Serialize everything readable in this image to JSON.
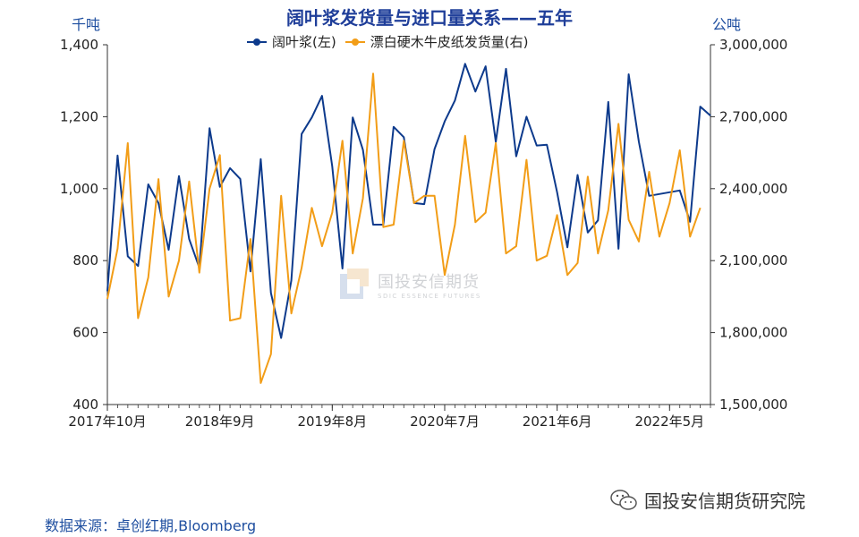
{
  "chart_data": {
    "type": "line",
    "title": "阔叶浆发货量与进口量关系——五年",
    "left_unit": "千吨",
    "right_unit": "公吨",
    "left_axis": {
      "min": 400,
      "max": 1400,
      "ticks": [
        400,
        600,
        800,
        1000,
        1200,
        1400
      ],
      "tick_labels": [
        "400",
        "600",
        "800",
        "1,000",
        "1,200",
        "1,400"
      ]
    },
    "right_axis": {
      "min": 1500000,
      "max": 3000000,
      "ticks": [
        1500000,
        1800000,
        2100000,
        2400000,
        2700000,
        3000000
      ],
      "tick_labels": [
        "1,500,000",
        "1,800,000",
        "2,100,000",
        "2,400,000",
        "2,700,000",
        "3,000,000"
      ]
    },
    "x_tick_labels": [
      "2017年10月",
      "2018年9月",
      "2019年8月",
      "2020年7月",
      "2021年6月",
      "2022年5月"
    ],
    "x_tick_index": [
      0,
      11,
      22,
      33,
      44,
      55
    ],
    "series": [
      {
        "name": "阔叶浆(左)",
        "axis": "left",
        "color": "#0d3a8c",
        "values": [
          715,
          1092,
          812,
          785,
          1012,
          960,
          830,
          1035,
          860,
          780,
          1168,
          1005,
          1057,
          1027,
          770,
          1082,
          710,
          585,
          745,
          1152,
          1198,
          1258,
          1062,
          778,
          1198,
          1108,
          900,
          900,
          1172,
          1143,
          960,
          957,
          1110,
          1187,
          1245,
          1347,
          1270,
          1340,
          1130,
          1333,
          1090,
          1200,
          1120,
          1122,
          990,
          837,
          1038,
          878,
          912,
          1241,
          833,
          1318,
          1130,
          980,
          985,
          990,
          995,
          908,
          1228,
          1203
        ]
      },
      {
        "name": "漂白硬木牛皮纸发货量(右)",
        "axis": "right",
        "color": "#f29d17",
        "values": [
          1940000,
          2150000,
          2590000,
          1860000,
          2030000,
          2440000,
          1950000,
          2100000,
          2430000,
          2050000,
          2400000,
          2540000,
          1850000,
          1860000,
          2190000,
          1590000,
          1710000,
          2370000,
          1880000,
          2070000,
          2320000,
          2160000,
          2300000,
          2600000,
          2130000,
          2360000,
          2880000,
          2240000,
          2250000,
          2600000,
          2340000,
          2370000,
          2370000,
          2040000,
          2250000,
          2620000,
          2260000,
          2300000,
          2590000,
          2130000,
          2160000,
          2520000,
          2100000,
          2120000,
          2290000,
          2040000,
          2090000,
          2450000,
          2130000,
          2310000,
          2670000,
          2270000,
          2180000,
          2470000,
          2200000,
          2340000,
          2560000,
          2200000,
          2320000
        ]
      }
    ],
    "grid": false,
    "legend_position": "top-center"
  },
  "source_text": "数据来源：卓创红期,Bloomberg",
  "watermark": {
    "cn": "国投安信期货",
    "en": "SDIC ESSENCE FUTURES"
  },
  "wechat_label": "国投安信期货研究院",
  "colors": {
    "title": "#1f3e99",
    "axis": "#1f4fa0",
    "series1": "#0d3a8c",
    "series2": "#f29d17"
  }
}
